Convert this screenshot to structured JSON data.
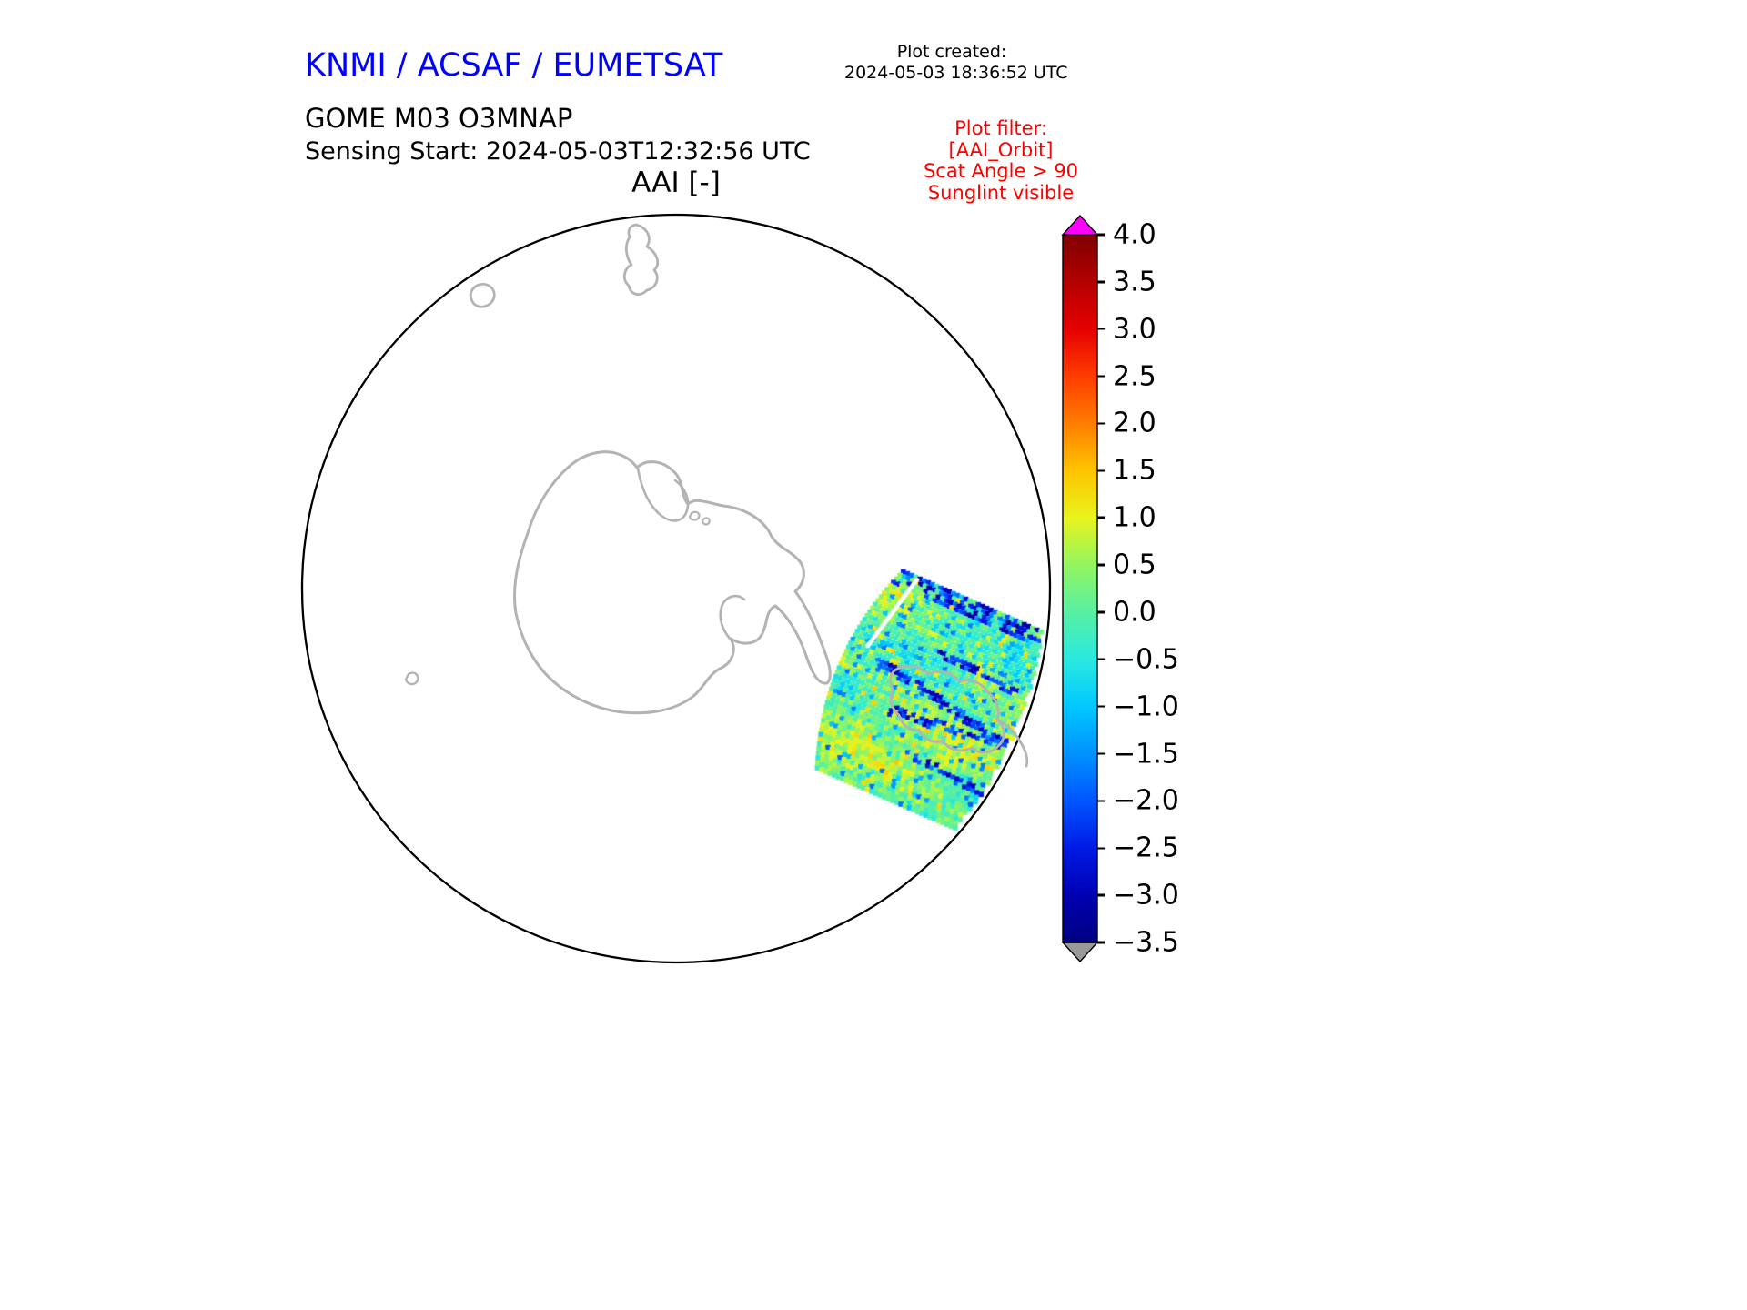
{
  "header": {
    "agency_title": "KNMI / ACSAF / EUMETSAT",
    "plot_created_label": "Plot created:",
    "plot_created_value": "2024-05-03 18:36:52 UTC",
    "product_title": "GOME M03 O3MNAP",
    "sensing_start_line": "Sensing Start: 2024-05-03T12:32:56 UTC",
    "filter": {
      "lines": [
        "Plot filter:",
        "[AAI_Orbit]",
        "Scat Angle > 90",
        "Sunglint visible"
      ]
    }
  },
  "map": {
    "title": "AAI [-]"
  },
  "colors": {
    "agency_blue": "#0000ff",
    "filter_red": "#ff0000",
    "coastline_gray": "#b3b3b3",
    "circle_black": "#000000"
  },
  "chart_data": {
    "type": "heatmap",
    "title": "AAI [-]",
    "description": "Absorbing Aerosol Index (AAI) orbit swath plotted on a south polar stereographic disk centred on Antarctica; one speckled swath of data (mostly -1.5 to +1.5, green/cyan with dark-blue streaks and a white gap line) crosses the lower-right edge of the disk.",
    "value_range_typical": [
      -1.5,
      1.5
    ],
    "colorbar": {
      "range": [
        -3.5,
        4.0
      ],
      "ticks": [
        4.0,
        3.5,
        3.0,
        2.5,
        2.0,
        1.5,
        1.0,
        0.5,
        0.0,
        -0.5,
        -1.0,
        -1.5,
        -2.0,
        -2.5,
        -3.0,
        -3.5
      ],
      "tick_labels": [
        "4.0",
        "3.5",
        "3.0",
        "2.5",
        "2.0",
        "1.5",
        "1.0",
        "0.5",
        "0.0",
        "−0.5",
        "−1.0",
        "−1.5",
        "−2.0",
        "−2.5",
        "−3.0",
        "−3.5"
      ],
      "over_color": "#ff00ff",
      "under_color": "#999999",
      "stops": [
        {
          "v": 4.0,
          "c": "#7f0000"
        },
        {
          "v": 3.5,
          "c": "#b40000"
        },
        {
          "v": 3.0,
          "c": "#e60000"
        },
        {
          "v": 2.5,
          "c": "#ff3c00"
        },
        {
          "v": 2.0,
          "c": "#ff7d00"
        },
        {
          "v": 1.5,
          "c": "#ffc400"
        },
        {
          "v": 1.0,
          "c": "#e9f41c"
        },
        {
          "v": 0.5,
          "c": "#93f55f"
        },
        {
          "v": 0.0,
          "c": "#57f0a3"
        },
        {
          "v": -0.5,
          "c": "#2ae9df"
        },
        {
          "v": -1.0,
          "c": "#00c8ff"
        },
        {
          "v": -1.5,
          "c": "#0092ff"
        },
        {
          "v": -2.0,
          "c": "#0055ff"
        },
        {
          "v": -2.5,
          "c": "#001ae6"
        },
        {
          "v": -3.0,
          "c": "#0000b4"
        },
        {
          "v": -3.5,
          "c": "#000080"
        }
      ]
    },
    "swath": {
      "seed": 1337,
      "center": [
        1022,
        770
      ],
      "along": [
        -0.4,
        0.917
      ],
      "across": [
        0.917,
        0.4
      ],
      "half_length": 118,
      "half_width": 106,
      "extra_right": 18,
      "cell": 5,
      "curvature": 0.0016,
      "gap_s": -88,
      "base_mean": 0.18,
      "streaks": [
        {
          "t": -18,
          "k": 0.18,
          "s0": -70,
          "s1": 100,
          "w": 5
        },
        {
          "t": 28,
          "k": -0.12,
          "s0": -40,
          "s1": 106,
          "w": 5
        },
        {
          "t": 62,
          "k": 0.1,
          "s0": -10,
          "s1": 106,
          "w": 4
        },
        {
          "t": -52,
          "k": 0.06,
          "s0": -20,
          "s1": 80,
          "w": 4
        }
      ]
    }
  }
}
